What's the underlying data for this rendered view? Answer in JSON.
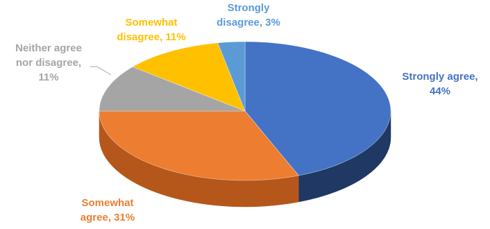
{
  "chart_data": {
    "type": "pie",
    "style": "3d",
    "slices": [
      {
        "name": "Strongly agree",
        "value": 44,
        "value_label": "44%",
        "color": "#4472C4",
        "side_color": "#1F3864",
        "label_color": "#4472C4",
        "label_lines": [
          "Strongly agree,",
          "44%"
        ]
      },
      {
        "name": "Somewhat agree",
        "value": 31,
        "value_label": "31%",
        "color": "#ED7D31",
        "side_color": "#B5571B",
        "label_color": "#ED7D31",
        "label_lines": [
          "Somewhat",
          "agree, 31%"
        ]
      },
      {
        "name": "Neither agree nor disagree",
        "value": 11,
        "value_label": "11%",
        "color": "#A5A5A5",
        "side_color": "#7F7F7F",
        "label_color": "#A5A5A5",
        "label_lines": [
          "Neither agree",
          "nor disagree,",
          "11%"
        ]
      },
      {
        "name": "Somewhat disagree",
        "value": 11,
        "value_label": "11%",
        "color": "#FFC000",
        "side_color": "#C99700",
        "label_color": "#FFC000",
        "label_lines": [
          "Somewhat",
          "disagree, 11%"
        ]
      },
      {
        "name": "Strongly disagree",
        "value": 3,
        "value_label": "3%",
        "color": "#5B9BD5",
        "side_color": "#3A6FA3",
        "label_color": "#5B9BD5",
        "label_lines": [
          "Strongly",
          "disagree, 3%"
        ]
      }
    ]
  }
}
